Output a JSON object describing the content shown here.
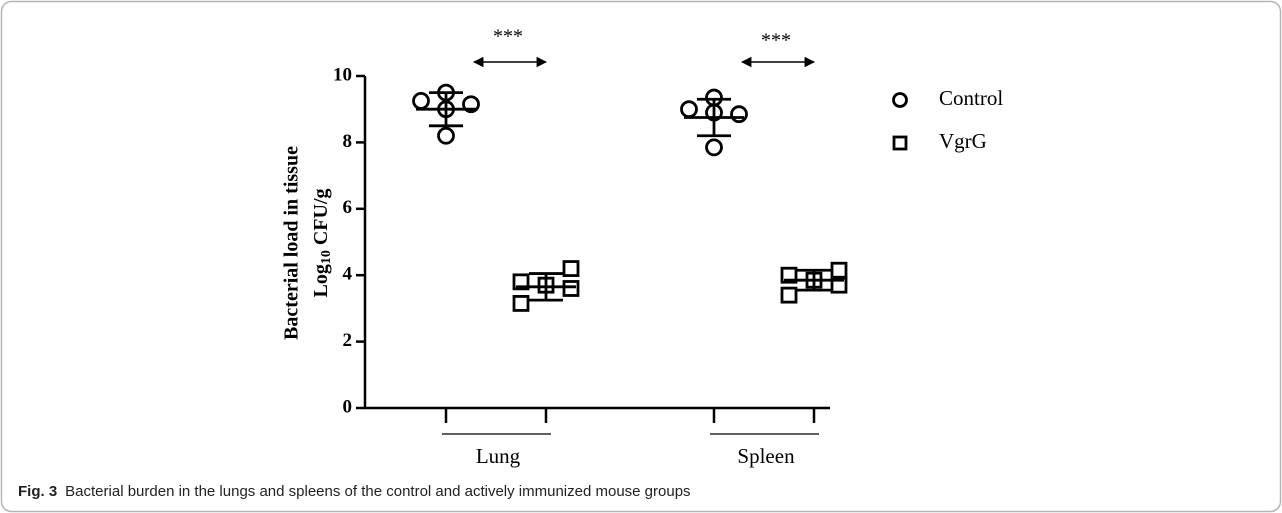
{
  "chart_data": {
    "type": "dot",
    "ylabel": {
      "line1": "Bacterial load in tissue",
      "base": "Log",
      "subscript": "10",
      "rest": "CFU/g"
    },
    "groups": [
      "Lung",
      "Spleen"
    ],
    "ylim": [
      0,
      10
    ],
    "yticks": [
      0,
      2,
      4,
      6,
      8,
      10
    ],
    "series": [
      {
        "name": "Control",
        "marker": "circle",
        "color": "#000000",
        "values": [
          [
            9.25,
            9.5,
            9.0,
            8.2,
            9.15
          ],
          [
            9.0,
            9.35,
            8.9,
            7.85,
            8.85
          ]
        ],
        "mean": [
          9.0,
          8.75
        ],
        "sd": [
          0.5,
          0.55
        ]
      },
      {
        "name": "VgrG",
        "marker": "square",
        "color": "#000000",
        "values": [
          [
            3.8,
            3.15,
            3.7,
            4.2,
            3.6
          ],
          [
            4.0,
            3.4,
            3.85,
            4.15,
            3.7
          ]
        ],
        "mean": [
          3.65,
          3.85
        ],
        "sd": [
          0.4,
          0.3
        ]
      }
    ],
    "annotations": [
      "***",
      "***"
    ]
  },
  "caption": {
    "label": "Fig. 3",
    "text": "Bacterial burden in the lungs and spleens of the control and actively immunized mouse groups"
  }
}
